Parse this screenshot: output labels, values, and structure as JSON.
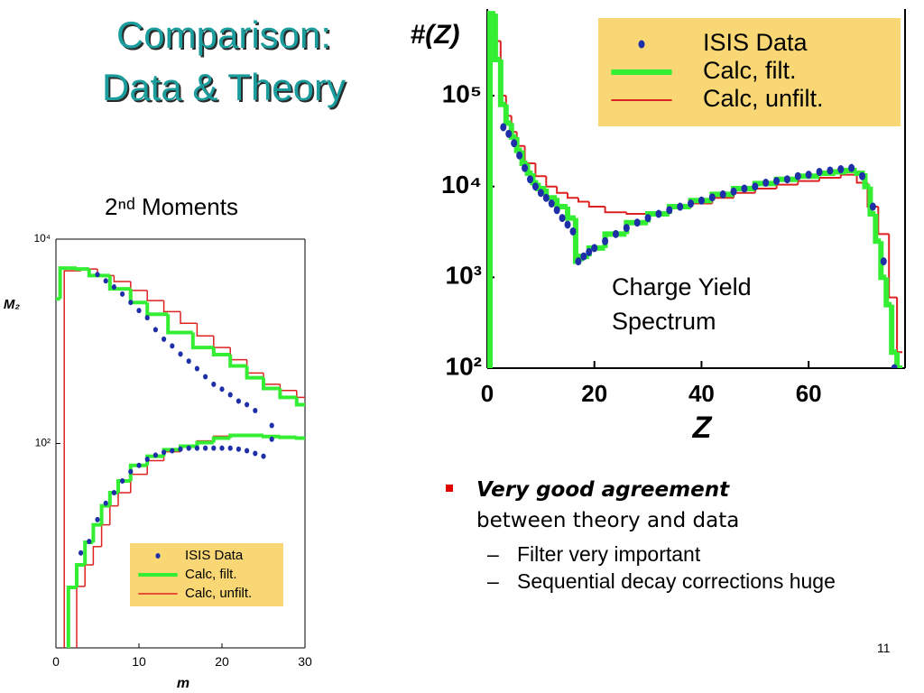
{
  "slide": {
    "title": [
      "Comparison:",
      "Data & Theory"
    ],
    "bullets": [
      {
        "bold": "Very good agreement",
        "text": "between theory and data",
        "sub": [
          "Filter very important",
          "Sequential decay corrections huge"
        ]
      }
    ],
    "page_number": 11
  },
  "chart_data": [
    {
      "type": "line",
      "ylabel": "#(Z)",
      "xlabel": "Z",
      "log_y": true,
      "legend": "upper right",
      "annotation": [
        "Charge Yield",
        "Spectrum"
      ],
      "xlim": [
        0,
        78
      ],
      "xticks": [
        0,
        20,
        40,
        60
      ],
      "ylim": [
        100,
        900000
      ],
      "yticks": [
        {
          "value": 100,
          "label": "10²"
        },
        {
          "value": 1000,
          "label": "10³"
        },
        {
          "value": 10000,
          "label": "10⁴"
        },
        {
          "value": 100000,
          "label": "10⁵"
        }
      ],
      "legend_fill": "#f8d774",
      "series": [
        {
          "name": "ISIS Data",
          "color": "#1f2fa8",
          "style": "points",
          "branches": [
            {
              "x": [
                3,
                4,
                5,
                6,
                7,
                8,
                9,
                10,
                11,
                12,
                13,
                14,
                15,
                16,
                17,
                18,
                19,
                20,
                22,
                24,
                26,
                28,
                30,
                32,
                34,
                36,
                38,
                40,
                42,
                44,
                46,
                48,
                50,
                52,
                54,
                56,
                58,
                60,
                62,
                64,
                66,
                68,
                70,
                72,
                74,
                76
              ],
              "values": [
                45000,
                38000,
                30000,
                22000,
                16000,
                12000,
                10000,
                8500,
                7500,
                6500,
                5500,
                4500,
                3800,
                3200,
                1500,
                1700,
                1900,
                2100,
                2500,
                3000,
                3500,
                4000,
                4500,
                5000,
                5500,
                6000,
                6500,
                7000,
                7600,
                8200,
                8800,
                9500,
                10000,
                11000,
                11500,
                12000,
                13000,
                13500,
                14500,
                15000,
                15500,
                16000,
                13000,
                6000,
                1500,
                100
              ]
            }
          ]
        },
        {
          "name": "Calc, filt.",
          "color": "#33ee33",
          "style": "steps",
          "branches": [
            {
              "x": [
                1,
                2,
                3,
                4,
                5,
                6,
                7,
                8,
                9,
                10,
                12,
                14,
                16,
                17,
                18,
                20,
                24,
                28,
                32,
                36,
                40,
                44,
                48,
                52,
                56,
                60,
                64,
                66,
                68,
                70,
                71,
                72,
                73,
                74,
                75,
                76,
                77
              ],
              "values": [
                800000,
                250000,
                80000,
                50000,
                35000,
                25000,
                18000,
                14000,
                11000,
                9500,
                7500,
                6000,
                4500,
                1500,
                1700,
                2100,
                3000,
                4000,
                5000,
                6000,
                7000,
                8200,
                9500,
                10800,
                12000,
                13000,
                14000,
                14500,
                15000,
                14000,
                10000,
                5000,
                2500,
                1000,
                500,
                150,
                100
              ]
            }
          ]
        },
        {
          "name": "Calc, unfilt.",
          "color": "#dd2222",
          "style": "steps",
          "branches": [
            {
              "x": [
                1,
                2,
                3,
                4,
                5,
                6,
                8,
                10,
                12,
                14,
                16,
                18,
                20,
                24,
                28,
                32,
                36,
                40,
                44,
                48,
                52,
                56,
                60,
                64,
                68,
                70,
                72,
                74,
                76,
                77
              ],
              "values": [
                800000,
                400000,
                100000,
                60000,
                40000,
                28000,
                18000,
                13000,
                10000,
                8500,
                7500,
                6800,
                6000,
                5200,
                5000,
                5200,
                5800,
                6500,
                7500,
                8500,
                9500,
                10500,
                11500,
                12500,
                13500,
                11000,
                6000,
                3000,
                600,
                150
              ]
            }
          ]
        }
      ]
    },
    {
      "type": "line",
      "title": "2ⁿᵈ Moments",
      "ylabel": "M₂",
      "xlabel": "m",
      "log_y": true,
      "legend": "lower right",
      "xlim": [
        0,
        30
      ],
      "xticks": [
        0,
        10,
        20,
        30
      ],
      "ylim": [
        1,
        10000
      ],
      "yticks": [
        {
          "value": 100,
          "label": "10²"
        },
        {
          "value": 10000,
          "label": "10⁴"
        }
      ],
      "legend_fill": "#f8d774",
      "series": [
        {
          "name": "ISIS Data",
          "color": "#1f2fa8",
          "style": "points",
          "branches": [
            {
              "x": [
                5,
                6,
                7,
                8,
                9,
                10,
                11,
                12,
                13,
                14,
                15,
                16,
                17,
                18,
                19,
                20,
                21,
                22,
                23,
                24,
                26
              ],
              "values": [
                4500,
                3900,
                3400,
                2900,
                2400,
                2000,
                1700,
                1300,
                1050,
                900,
                750,
                640,
                540,
                450,
                380,
                340,
                300,
                260,
                240,
                210,
                150
              ]
            },
            {
              "x": [
                3,
                4,
                5,
                6,
                7,
                8,
                9,
                10,
                11,
                12,
                13,
                14,
                15,
                16,
                17,
                18,
                19,
                20,
                21,
                22,
                23,
                24,
                25,
                26
              ],
              "values": [
                8.5,
                11,
                18,
                26,
                33,
                43,
                53,
                61,
                70,
                77,
                82,
                85,
                88,
                90,
                90,
                90,
                90,
                90,
                90,
                88,
                85,
                80,
                75,
                110
              ]
            }
          ]
        },
        {
          "name": "Calc, filt.",
          "color": "#33ee33",
          "style": "steps",
          "branches": [
            {
              "x": [
                0,
                1,
                2,
                3,
                5,
                8,
                10,
                12,
                15,
                18,
                20,
                22,
                24,
                26,
                28,
                30
              ],
              "values": [
                2600,
                5200,
                5200,
                5100,
                4400,
                3260,
                2400,
                1840,
                1220,
                870,
                740,
                575,
                440,
                346,
                283,
                240
              ]
            },
            {
              "x": [
                2,
                3,
                4,
                5,
                6,
                7,
                8,
                10,
                12,
                14,
                16,
                18,
                20,
                22,
                24,
                26,
                28,
                30
              ],
              "values": [
                3.9,
                6.5,
                10.8,
                16,
                24.5,
                33,
                43,
                61,
                75,
                87,
                94,
                102,
                113,
                120,
                120,
                117,
                115,
                113
              ]
            }
          ]
        },
        {
          "name": "Calc, unfilt.",
          "color": "#dd2222",
          "style": "steps",
          "branches": [
            {
              "x": [
                2,
                4,
                6,
                8,
                10,
                12,
                14,
                16,
                18,
                20,
                22,
                24,
                26,
                28,
                30
              ],
              "values": [
                4900,
                5100,
                4400,
                3850,
                3150,
                2500,
                1950,
                1500,
                1130,
                870,
                660,
                490,
                380,
                330,
                283
              ]
            },
            {
              "x": [
                3,
                4,
                5,
                6,
                7,
                8,
                10,
                12,
                14,
                16,
                18,
                20,
                22,
                24,
                26,
                28,
                30
              ],
              "values": [
                4,
                6.5,
                9.8,
                16,
                24.5,
                33,
                50,
                68,
                83,
                96,
                106,
                118,
                123,
                121,
                118,
                114,
                110
              ]
            }
          ]
        }
      ]
    }
  ]
}
